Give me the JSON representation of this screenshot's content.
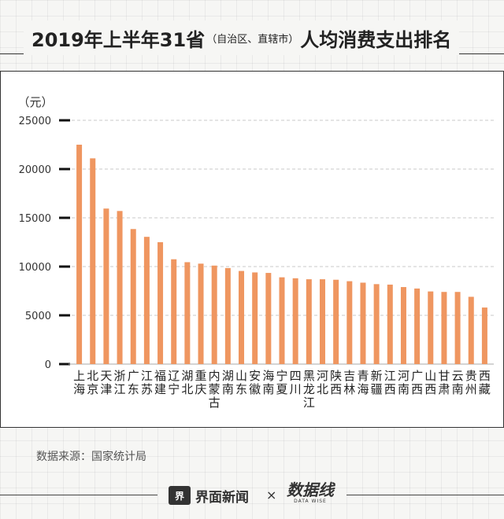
{
  "title": {
    "main": "2019年上半年31省",
    "sub": "（自治区、直辖市）",
    "tail": "人均消费支出排名"
  },
  "source": "数据来源：国家统计局",
  "footer": {
    "brand1_icon": "界",
    "brand1": "界面新闻",
    "times": "×",
    "brand2": "数据线",
    "brand2_sub": "DATA WISE"
  },
  "chart_data": {
    "type": "bar",
    "unit_label": "（元）",
    "ylim": [
      0,
      25000
    ],
    "yticks": [
      0,
      5000,
      10000,
      15000,
      20000,
      25000
    ],
    "grid": true,
    "bar_color": "#ef9660",
    "categories": [
      "上海",
      "北京",
      "天津",
      "浙江",
      "广东",
      "江苏",
      "福建",
      "辽宁",
      "湖北",
      "重庆",
      "内蒙古",
      "湖南",
      "山东",
      "安徽",
      "海南",
      "宁夏",
      "四川",
      "黑龙江",
      "河北",
      "陕西",
      "吉林",
      "青海",
      "新疆",
      "江西",
      "河南",
      "广西",
      "山西",
      "甘肃",
      "云南",
      "贵州",
      "西藏"
    ],
    "values": [
      22500,
      21100,
      15950,
      15700,
      13850,
      13050,
      12500,
      10750,
      10450,
      10300,
      10100,
      9850,
      9550,
      9400,
      9350,
      8900,
      8800,
      8700,
      8700,
      8650,
      8500,
      8350,
      8200,
      8150,
      7900,
      7750,
      7450,
      7400,
      7400,
      6900,
      5800
    ]
  }
}
